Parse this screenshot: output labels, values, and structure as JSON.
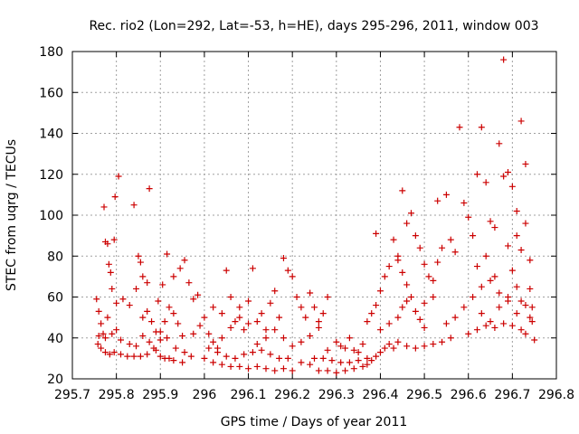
{
  "chart_data": {
    "type": "scatter",
    "title": "Rec. rio2 (Lon=292, Lat=-53, h=HE), days 295-296, 2011, window 003",
    "xlabel": "GPS time / Days of year 2011",
    "ylabel": "STEC from uqrg / TECUs",
    "xlim": [
      295.7,
      296.8
    ],
    "ylim": [
      20,
      180
    ],
    "x_ticks": [
      295.7,
      295.8,
      295.9,
      296.0,
      296.1,
      296.2,
      296.3,
      296.4,
      296.5,
      296.6,
      296.7,
      296.8
    ],
    "x_tick_labels": [
      "295.7",
      "295.8",
      "295.9",
      "296",
      "296.1",
      "296.2",
      "296.3",
      "296.4",
      "296.5",
      "296.6",
      "296.7",
      "296.8"
    ],
    "y_ticks": [
      20,
      40,
      60,
      80,
      100,
      120,
      140,
      160,
      180
    ],
    "y_tick_labels": [
      "20",
      "40",
      "60",
      "80",
      "100",
      "120",
      "140",
      "160",
      "180"
    ],
    "grid": true,
    "marker": "+",
    "marker_color": "#cc0000",
    "series": [
      {
        "points": [
          [
            295.755,
            59
          ],
          [
            295.76,
            53
          ],
          [
            295.765,
            47
          ],
          [
            295.77,
            42
          ],
          [
            295.772,
            104
          ],
          [
            295.775,
            87
          ],
          [
            295.78,
            86
          ],
          [
            295.783,
            76
          ],
          [
            295.787,
            72
          ],
          [
            295.79,
            64
          ],
          [
            295.795,
            88
          ],
          [
            295.797,
            109
          ],
          [
            295.805,
            119
          ],
          [
            295.758,
            37
          ],
          [
            295.765,
            35
          ],
          [
            295.775,
            33
          ],
          [
            295.785,
            32
          ],
          [
            295.795,
            33
          ],
          [
            295.81,
            32
          ],
          [
            295.825,
            31
          ],
          [
            295.84,
            31
          ],
          [
            295.855,
            31
          ],
          [
            295.87,
            32
          ],
          [
            295.885,
            35
          ],
          [
            295.76,
            41
          ],
          [
            295.775,
            40
          ],
          [
            295.79,
            42
          ],
          [
            295.8,
            44
          ],
          [
            295.81,
            39
          ],
          [
            295.83,
            37
          ],
          [
            295.845,
            36
          ],
          [
            295.86,
            41
          ],
          [
            295.875,
            38
          ],
          [
            295.78,
            50
          ],
          [
            295.8,
            57
          ],
          [
            295.815,
            59
          ],
          [
            295.83,
            56
          ],
          [
            295.845,
            64
          ],
          [
            295.85,
            80
          ],
          [
            295.855,
            77
          ],
          [
            295.86,
            70
          ],
          [
            295.87,
            67
          ],
          [
            295.875,
            113
          ],
          [
            295.84,
            105
          ],
          [
            295.86,
            50
          ],
          [
            295.87,
            53
          ],
          [
            295.88,
            48
          ],
          [
            295.89,
            43
          ],
          [
            295.9,
            39
          ],
          [
            295.91,
            48
          ],
          [
            295.92,
            55
          ],
          [
            295.93,
            52
          ],
          [
            295.94,
            47
          ],
          [
            295.95,
            41
          ],
          [
            295.89,
            34
          ],
          [
            295.9,
            31
          ],
          [
            295.91,
            30
          ],
          [
            295.92,
            30
          ],
          [
            295.93,
            29
          ],
          [
            295.95,
            28
          ],
          [
            295.97,
            31
          ],
          [
            295.895,
            58
          ],
          [
            295.905,
            66
          ],
          [
            295.915,
            81
          ],
          [
            295.93,
            70
          ],
          [
            295.945,
            74
          ],
          [
            295.955,
            78
          ],
          [
            295.965,
            67
          ],
          [
            295.975,
            59
          ],
          [
            295.985,
            61
          ],
          [
            295.9,
            43
          ],
          [
            295.915,
            40
          ],
          [
            295.935,
            35
          ],
          [
            295.955,
            33
          ],
          [
            295.975,
            42
          ],
          [
            295.99,
            46
          ],
          [
            296.0,
            50
          ],
          [
            296.01,
            42
          ],
          [
            296.02,
            38
          ],
          [
            296.03,
            35
          ],
          [
            296.04,
            40
          ],
          [
            296.05,
            73
          ],
          [
            296.06,
            60
          ],
          [
            296.07,
            48
          ],
          [
            296.08,
            55
          ],
          [
            296.09,
            44
          ],
          [
            296.1,
            47
          ],
          [
            296.11,
            74
          ],
          [
            296.0,
            30
          ],
          [
            296.02,
            28
          ],
          [
            296.04,
            27
          ],
          [
            296.06,
            26
          ],
          [
            296.08,
            26
          ],
          [
            296.1,
            25
          ],
          [
            296.12,
            26
          ],
          [
            296.14,
            25
          ],
          [
            296.16,
            24
          ],
          [
            296.18,
            25
          ],
          [
            296.2,
            24
          ],
          [
            296.01,
            35
          ],
          [
            296.03,
            33
          ],
          [
            296.05,
            31
          ],
          [
            296.07,
            30
          ],
          [
            296.09,
            32
          ],
          [
            296.11,
            33
          ],
          [
            296.13,
            34
          ],
          [
            296.15,
            32
          ],
          [
            296.17,
            30
          ],
          [
            296.19,
            30
          ],
          [
            296.02,
            55
          ],
          [
            296.04,
            52
          ],
          [
            296.06,
            45
          ],
          [
            296.08,
            50
          ],
          [
            296.1,
            58
          ],
          [
            296.12,
            48
          ],
          [
            296.13,
            52
          ],
          [
            296.14,
            44
          ],
          [
            296.15,
            57
          ],
          [
            296.16,
            63
          ],
          [
            296.17,
            50
          ],
          [
            296.12,
            37
          ],
          [
            296.14,
            40
          ],
          [
            296.16,
            44
          ],
          [
            296.18,
            40
          ],
          [
            296.2,
            36
          ],
          [
            296.22,
            38
          ],
          [
            296.24,
            41
          ],
          [
            296.26,
            45
          ],
          [
            296.28,
            34
          ],
          [
            296.18,
            79
          ],
          [
            296.19,
            73
          ],
          [
            296.2,
            70
          ],
          [
            296.21,
            60
          ],
          [
            296.22,
            55
          ],
          [
            296.23,
            50
          ],
          [
            296.24,
            62
          ],
          [
            296.25,
            55
          ],
          [
            296.26,
            48
          ],
          [
            296.27,
            52
          ],
          [
            296.28,
            60
          ],
          [
            296.22,
            28
          ],
          [
            296.24,
            27
          ],
          [
            296.26,
            24
          ],
          [
            296.28,
            24
          ],
          [
            296.3,
            23
          ],
          [
            296.32,
            24
          ],
          [
            296.34,
            25
          ],
          [
            296.36,
            26
          ],
          [
            296.25,
            30
          ],
          [
            296.27,
            30
          ],
          [
            296.29,
            29
          ],
          [
            296.31,
            28
          ],
          [
            296.33,
            28
          ],
          [
            296.35,
            29
          ],
          [
            296.37,
            30
          ],
          [
            296.3,
            38
          ],
          [
            296.31,
            36
          ],
          [
            296.32,
            35
          ],
          [
            296.33,
            40
          ],
          [
            296.34,
            34
          ],
          [
            296.35,
            33
          ],
          [
            296.36,
            37
          ],
          [
            296.37,
            48
          ],
          [
            296.38,
            52
          ],
          [
            296.39,
            56
          ],
          [
            296.39,
            91
          ],
          [
            296.4,
            63
          ],
          [
            296.41,
            70
          ],
          [
            296.42,
            75
          ],
          [
            296.43,
            88
          ],
          [
            296.44,
            78
          ],
          [
            296.45,
            72
          ],
          [
            296.46,
            66
          ],
          [
            296.37,
            27
          ],
          [
            296.38,
            29
          ],
          [
            296.39,
            31
          ],
          [
            296.4,
            33
          ],
          [
            296.41,
            35
          ],
          [
            296.42,
            37
          ],
          [
            296.43,
            35
          ],
          [
            296.4,
            44
          ],
          [
            296.42,
            47
          ],
          [
            296.44,
            50
          ],
          [
            296.45,
            55
          ],
          [
            296.46,
            58
          ],
          [
            296.47,
            60
          ],
          [
            296.48,
            53
          ],
          [
            296.49,
            49
          ],
          [
            296.5,
            45
          ],
          [
            296.44,
            80
          ],
          [
            296.45,
            112
          ],
          [
            296.46,
            96
          ],
          [
            296.47,
            101
          ],
          [
            296.48,
            90
          ],
          [
            296.49,
            84
          ],
          [
            296.5,
            76
          ],
          [
            296.51,
            70
          ],
          [
            296.52,
            68
          ],
          [
            296.53,
            77
          ],
          [
            296.54,
            84
          ],
          [
            296.44,
            38
          ],
          [
            296.46,
            36
          ],
          [
            296.48,
            35
          ],
          [
            296.5,
            36
          ],
          [
            296.52,
            37
          ],
          [
            296.54,
            38
          ],
          [
            296.56,
            40
          ],
          [
            296.5,
            57
          ],
          [
            296.52,
            60
          ],
          [
            296.53,
            107
          ],
          [
            296.55,
            110
          ],
          [
            296.56,
            88
          ],
          [
            296.57,
            82
          ],
          [
            296.58,
            143
          ],
          [
            296.59,
            106
          ],
          [
            296.6,
            99
          ],
          [
            296.61,
            90
          ],
          [
            296.55,
            47
          ],
          [
            296.57,
            50
          ],
          [
            296.59,
            55
          ],
          [
            296.61,
            60
          ],
          [
            296.63,
            52
          ],
          [
            296.65,
            48
          ],
          [
            296.67,
            55
          ],
          [
            296.69,
            58
          ],
          [
            296.71,
            52
          ],
          [
            296.6,
            42
          ],
          [
            296.62,
            44
          ],
          [
            296.64,
            46
          ],
          [
            296.66,
            45
          ],
          [
            296.68,
            47
          ],
          [
            296.7,
            46
          ],
          [
            296.72,
            44
          ],
          [
            296.73,
            42
          ],
          [
            296.62,
            120
          ],
          [
            296.63,
            143
          ],
          [
            296.64,
            116
          ],
          [
            296.65,
            97
          ],
          [
            296.66,
            94
          ],
          [
            296.67,
            135
          ],
          [
            296.68,
            119
          ],
          [
            296.69,
            121
          ],
          [
            296.7,
            114
          ],
          [
            296.71,
            102
          ],
          [
            296.62,
            75
          ],
          [
            296.64,
            80
          ],
          [
            296.66,
            70
          ],
          [
            296.68,
            176
          ],
          [
            296.69,
            85
          ],
          [
            296.7,
            73
          ],
          [
            296.71,
            90
          ],
          [
            296.72,
            146
          ],
          [
            296.73,
            125
          ],
          [
            296.63,
            65
          ],
          [
            296.65,
            68
          ],
          [
            296.67,
            62
          ],
          [
            296.69,
            60
          ],
          [
            296.71,
            65
          ],
          [
            296.72,
            58
          ],
          [
            296.73,
            56
          ],
          [
            296.74,
            50
          ],
          [
            296.72,
            83
          ],
          [
            296.73,
            96
          ],
          [
            296.74,
            78
          ],
          [
            296.74,
            64
          ],
          [
            296.745,
            55
          ],
          [
            296.75,
            39
          ],
          [
            296.745,
            48
          ]
        ]
      }
    ]
  }
}
